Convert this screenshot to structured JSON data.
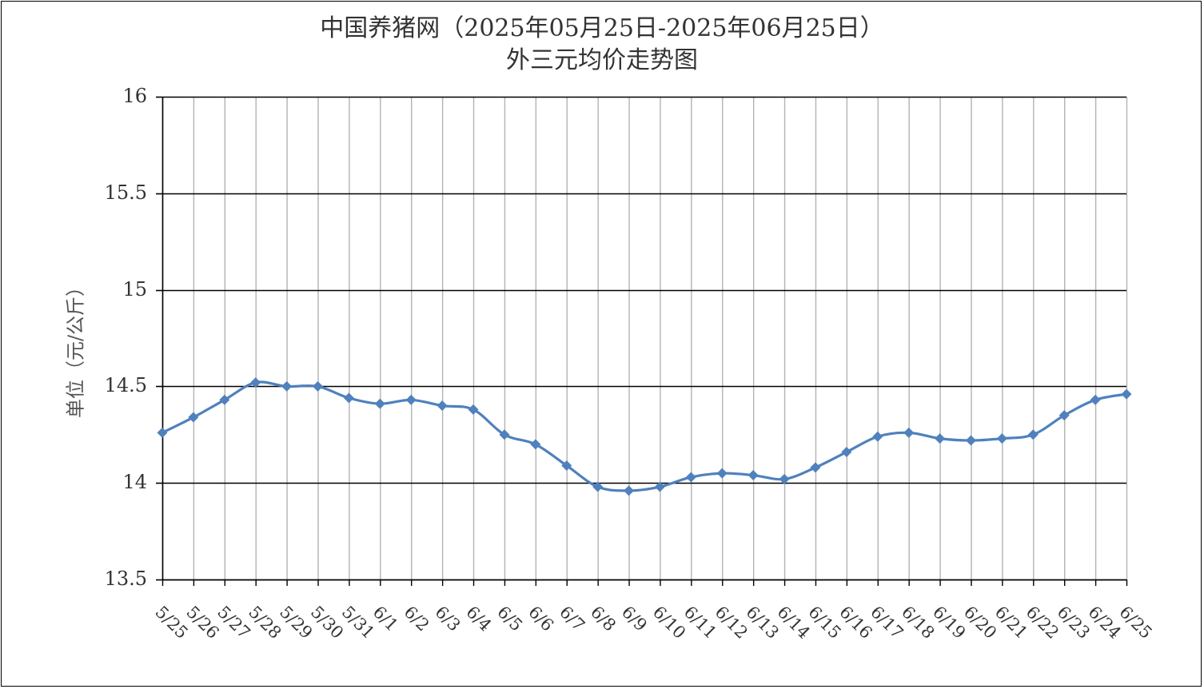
{
  "chart_data": {
    "type": "line",
    "title_line1": "中国养猪网（2025年05月25日-2025年06月25日）",
    "title_line2": "外三元均价走势图",
    "xlabel": "",
    "ylabel": "单位（元/公斤）",
    "ylim": [
      13.5,
      16
    ],
    "yticks": [
      "13.5",
      "14",
      "14.5",
      "15",
      "15.5",
      "16"
    ],
    "ytick_values": [
      13.5,
      14,
      14.5,
      15,
      15.5,
      16
    ],
    "grid": "both",
    "legend": "none",
    "line_color": "#4f81bd",
    "categories": [
      "5/25",
      "5/26",
      "5/27",
      "5/28",
      "5/29",
      "5/30",
      "5/31",
      "6/1",
      "6/2",
      "6/3",
      "6/4",
      "6/5",
      "6/6",
      "6/7",
      "6/8",
      "6/9",
      "6/10",
      "6/11",
      "6/12",
      "6/13",
      "6/14",
      "6/15",
      "6/16",
      "6/17",
      "6/18",
      "6/19",
      "6/20",
      "6/21",
      "6/22",
      "6/23",
      "6/24",
      "6/25"
    ],
    "values": [
      14.26,
      14.34,
      14.43,
      14.52,
      14.5,
      14.5,
      14.44,
      14.41,
      14.43,
      14.4,
      14.38,
      14.25,
      14.2,
      14.09,
      13.98,
      13.96,
      13.98,
      14.03,
      14.05,
      14.04,
      14.02,
      14.08,
      14.16,
      14.24,
      14.26,
      14.23,
      14.22,
      14.23,
      14.25,
      14.35,
      14.43,
      14.46
    ]
  }
}
